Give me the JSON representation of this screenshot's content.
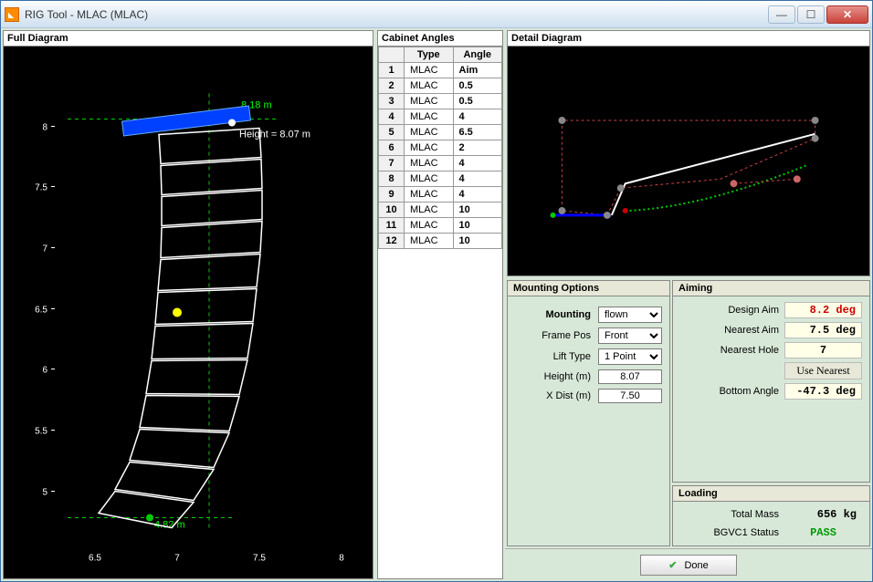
{
  "window": {
    "title": "RIG Tool - MLAC (MLAC)"
  },
  "panels": {
    "full_diagram": "Full Diagram",
    "cabinet_angles": "Cabinet Angles",
    "detail_diagram": "Detail Diagram",
    "mounting_options": "Mounting Options",
    "aiming": "Aiming",
    "loading": "Loading"
  },
  "full_diagram": {
    "top_label": "8.18 m",
    "height_label": "Height = 8.07 m",
    "bottom_label": "4.82 m",
    "y_ticks": [
      "8",
      "7.5",
      "7",
      "6.5",
      "6",
      "5.5",
      "5"
    ],
    "x_ticks": [
      "6.5",
      "7",
      "7.5",
      "8"
    ]
  },
  "cabinets": {
    "headers": [
      "Type",
      "Angle"
    ],
    "rows": [
      [
        "MLAC",
        "Aim"
      ],
      [
        "MLAC",
        "0.5"
      ],
      [
        "MLAC",
        "0.5"
      ],
      [
        "MLAC",
        "4"
      ],
      [
        "MLAC",
        "6.5"
      ],
      [
        "MLAC",
        "2"
      ],
      [
        "MLAC",
        "4"
      ],
      [
        "MLAC",
        "4"
      ],
      [
        "MLAC",
        "4"
      ],
      [
        "MLAC",
        "10"
      ],
      [
        "MLAC",
        "10"
      ],
      [
        "MLAC",
        "10"
      ]
    ]
  },
  "mounting": {
    "labels": {
      "mounting": "Mounting",
      "frame_pos": "Frame Pos",
      "lift_type": "Lift Type",
      "height": "Height (m)",
      "xdist": "X Dist (m)"
    },
    "values": {
      "mounting": "flown",
      "frame_pos": "Front",
      "lift_type": "1 Point",
      "height": "8.07",
      "xdist": "7.50"
    }
  },
  "aiming": {
    "design_aim": {
      "label": "Design Aim",
      "value": "8.2 deg"
    },
    "nearest_aim": {
      "label": "Nearest Aim",
      "value": "7.5 deg"
    },
    "nearest_hole": {
      "label": "Nearest Hole",
      "value": "7"
    },
    "use_nearest": "Use Nearest",
    "bottom_angle": {
      "label": "Bottom Angle",
      "value": "-47.3 deg"
    }
  },
  "loading": {
    "total_mass": {
      "label": "Total Mass",
      "value": "656 kg"
    },
    "bgvc1": {
      "label": "BGVC1 Status",
      "value": "PASS"
    }
  },
  "footer": {
    "done": "Done"
  },
  "colors": {
    "bg": "#d8e8d8",
    "black": "#000000",
    "blue": "#0040ff",
    "green": "#00ff00",
    "white": "#ffffff",
    "red_dash": "#cc3333"
  }
}
